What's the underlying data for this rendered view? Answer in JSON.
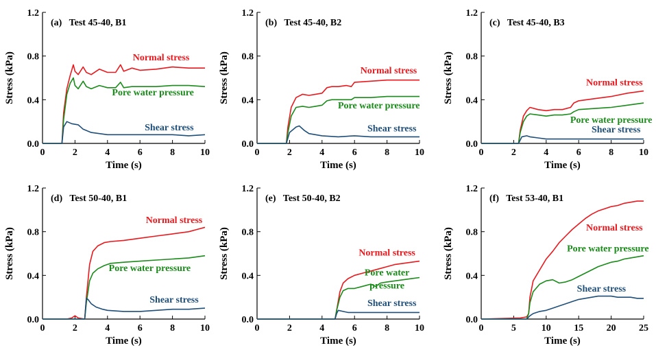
{
  "figure": {
    "y_axis_label": "Stress (kPa)",
    "x_axis_label": "Time (s)"
  },
  "colors": {
    "normal": "#e8191e",
    "pore": "#1a8a1a",
    "shear": "#1f4e79",
    "axis": "#000000"
  },
  "chart_data": [
    {
      "type": "line",
      "title": "(a)   Test 45-40, B1",
      "xlabel": "Time (s)",
      "ylabel": "Stress (kPa)",
      "xlim": [
        0,
        10
      ],
      "ylim": [
        0,
        1.2
      ],
      "xticks": [
        0,
        2,
        4,
        6,
        8,
        10
      ],
      "yticks": [
        0.0,
        0.4,
        0.8,
        1.2
      ],
      "series": [
        {
          "name": "Normal stress",
          "color_key": "normal",
          "x": [
            0,
            1.2,
            1.3,
            1.5,
            1.7,
            1.9,
            2.0,
            2.2,
            2.5,
            2.7,
            3.0,
            3.5,
            4.0,
            4.5,
            4.8,
            5.0,
            5.5,
            6.0,
            7.0,
            8.0,
            9.0,
            10.0
          ],
          "y": [
            0,
            0,
            0.28,
            0.5,
            0.62,
            0.72,
            0.66,
            0.63,
            0.7,
            0.65,
            0.63,
            0.68,
            0.65,
            0.65,
            0.72,
            0.66,
            0.69,
            0.67,
            0.68,
            0.7,
            0.69,
            0.69
          ]
        },
        {
          "name": "Pore water pressure",
          "color_key": "pore",
          "x": [
            0,
            1.2,
            1.3,
            1.5,
            1.7,
            1.9,
            2.0,
            2.2,
            2.5,
            2.7,
            3.0,
            3.5,
            4.0,
            4.5,
            4.8,
            5.0,
            5.5,
            6.0,
            7.0,
            8.0,
            9.0,
            10.0
          ],
          "y": [
            0,
            0,
            0.22,
            0.45,
            0.55,
            0.6,
            0.53,
            0.5,
            0.57,
            0.52,
            0.5,
            0.53,
            0.51,
            0.51,
            0.56,
            0.51,
            0.52,
            0.52,
            0.52,
            0.53,
            0.53,
            0.52
          ]
        },
        {
          "name": "Shear stress",
          "color_key": "shear",
          "x": [
            0,
            1.2,
            1.3,
            1.5,
            1.8,
            2.2,
            2.5,
            3.0,
            3.5,
            4.0,
            5.0,
            6.0,
            7.0,
            8.0,
            9.0,
            10.0
          ],
          "y": [
            0,
            0,
            0.15,
            0.2,
            0.18,
            0.17,
            0.13,
            0.1,
            0.09,
            0.08,
            0.08,
            0.08,
            0.08,
            0.08,
            0.07,
            0.08
          ]
        }
      ],
      "labels": [
        {
          "text": "Normal stress",
          "color_key": "normal",
          "x": 7.3,
          "y": 0.76
        },
        {
          "text": "Pore water pressure",
          "color_key": "pore",
          "x": 6.8,
          "y": 0.44
        },
        {
          "text": "Shear stress",
          "color_key": "shear",
          "x": 7.8,
          "y": 0.12
        }
      ]
    },
    {
      "type": "line",
      "title": "(b)   Test 45-40, B2",
      "xlabel": "Time (s)",
      "ylabel": "Stress (kPa)",
      "xlim": [
        0,
        10
      ],
      "ylim": [
        0,
        1.2
      ],
      "xticks": [
        0,
        2,
        4,
        6,
        8,
        10
      ],
      "yticks": [
        0.0,
        0.4,
        0.8,
        1.2
      ],
      "series": [
        {
          "name": "Normal stress",
          "color_key": "normal",
          "x": [
            0,
            1.8,
            1.9,
            2.1,
            2.4,
            2.8,
            3.2,
            3.6,
            4.0,
            4.3,
            4.6,
            5.0,
            5.5,
            5.8,
            6.0,
            7.0,
            8.0,
            9.0,
            10.0
          ],
          "y": [
            0,
            0,
            0.15,
            0.33,
            0.42,
            0.45,
            0.44,
            0.45,
            0.46,
            0.51,
            0.52,
            0.52,
            0.53,
            0.52,
            0.56,
            0.57,
            0.58,
            0.58,
            0.58
          ]
        },
        {
          "name": "Pore water pressure",
          "color_key": "pore",
          "x": [
            0,
            1.8,
            1.9,
            2.1,
            2.4,
            2.8,
            3.2,
            3.6,
            4.0,
            4.3,
            4.6,
            5.0,
            5.5,
            5.8,
            6.0,
            7.0,
            8.0,
            9.0,
            10.0
          ],
          "y": [
            0,
            0,
            0.1,
            0.25,
            0.33,
            0.34,
            0.33,
            0.34,
            0.35,
            0.39,
            0.4,
            0.4,
            0.4,
            0.4,
            0.42,
            0.42,
            0.43,
            0.43,
            0.43
          ]
        },
        {
          "name": "Shear stress",
          "color_key": "shear",
          "x": [
            0,
            1.8,
            2.0,
            2.4,
            2.6,
            2.9,
            3.2,
            3.6,
            4.0,
            5.0,
            6.0,
            7.0,
            8.0,
            9.0,
            10.0
          ],
          "y": [
            0,
            0,
            0.1,
            0.15,
            0.16,
            0.12,
            0.09,
            0.08,
            0.07,
            0.06,
            0.07,
            0.06,
            0.06,
            0.06,
            0.06
          ]
        }
      ],
      "labels": [
        {
          "text": "Normal stress",
          "color_key": "normal",
          "x": 8.1,
          "y": 0.64
        },
        {
          "text": "Pore water pressure",
          "color_key": "pore",
          "x": 7.5,
          "y": 0.32
        },
        {
          "text": "Shear stress",
          "color_key": "shear",
          "x": 8.3,
          "y": 0.11
        }
      ]
    },
    {
      "type": "line",
      "title": "(c)   Test 45-40, B3",
      "xlabel": "Time (s)",
      "ylabel": "Stress (kPa)",
      "xlim": [
        0,
        10
      ],
      "ylim": [
        0,
        1.2
      ],
      "xticks": [
        0,
        2,
        4,
        6,
        8,
        10
      ],
      "yticks": [
        0.0,
        0.4,
        0.8,
        1.2
      ],
      "series": [
        {
          "name": "Normal stress",
          "color_key": "normal",
          "x": [
            0,
            2.3,
            2.4,
            2.6,
            2.8,
            3.0,
            3.5,
            4.0,
            4.5,
            5.0,
            5.5,
            5.7,
            6.0,
            7.0,
            8.0,
            9.0,
            10.0
          ],
          "y": [
            0,
            0,
            0.12,
            0.25,
            0.3,
            0.33,
            0.31,
            0.3,
            0.31,
            0.31,
            0.33,
            0.37,
            0.39,
            0.41,
            0.43,
            0.46,
            0.48
          ]
        },
        {
          "name": "Pore water pressure",
          "color_key": "pore",
          "x": [
            0,
            2.3,
            2.4,
            2.6,
            2.8,
            3.0,
            3.5,
            4.0,
            4.5,
            5.0,
            5.5,
            5.7,
            6.0,
            7.0,
            8.0,
            9.0,
            10.0
          ],
          "y": [
            0,
            0,
            0.1,
            0.2,
            0.25,
            0.27,
            0.26,
            0.25,
            0.26,
            0.26,
            0.27,
            0.29,
            0.31,
            0.32,
            0.33,
            0.35,
            0.37
          ]
        },
        {
          "name": "Shear stress",
          "color_key": "shear",
          "x": [
            0,
            2.3,
            2.5,
            2.8,
            3.0,
            3.5,
            4.0,
            5.0,
            6.0,
            7.0,
            8.0,
            9.0,
            10.0
          ],
          "y": [
            0,
            0,
            0.06,
            0.07,
            0.06,
            0.05,
            0.04,
            0.04,
            0.04,
            0.04,
            0.04,
            0.04,
            0.04
          ]
        }
      ],
      "labels": [
        {
          "text": "Normal stress",
          "color_key": "normal",
          "x": 8.2,
          "y": 0.53
        },
        {
          "text": "Pore water pressure",
          "color_key": "pore",
          "x": 8.0,
          "y": 0.19
        },
        {
          "text": "Shear stress",
          "color_key": "shear",
          "x": 8.3,
          "y": 0.1
        }
      ]
    },
    {
      "type": "line",
      "title": "(d)   Test 50-40, B1",
      "xlabel": "Time (s)",
      "ylabel": "Stress (kPa)",
      "xlim": [
        0,
        10
      ],
      "ylim": [
        0,
        1.2
      ],
      "xticks": [
        0,
        2,
        4,
        6,
        8,
        10
      ],
      "yticks": [
        0.0,
        0.4,
        0.8,
        1.2
      ],
      "series": [
        {
          "name": "Normal stress",
          "color_key": "normal",
          "x": [
            0,
            1.5,
            1.8,
            2.0,
            2.2,
            2.6,
            2.7,
            2.9,
            3.1,
            3.4,
            3.8,
            4.2,
            5.0,
            6.0,
            7.0,
            8.0,
            9.0,
            9.5,
            10.0
          ],
          "y": [
            0,
            0,
            0.01,
            0.03,
            0.01,
            0.0,
            0.2,
            0.5,
            0.62,
            0.67,
            0.7,
            0.71,
            0.72,
            0.74,
            0.76,
            0.78,
            0.8,
            0.82,
            0.84
          ]
        },
        {
          "name": "Pore water pressure",
          "color_key": "pore",
          "x": [
            0,
            2.6,
            2.7,
            2.9,
            3.1,
            3.4,
            3.8,
            4.2,
            5.0,
            6.0,
            7.0,
            8.0,
            9.0,
            10.0
          ],
          "y": [
            0,
            0,
            0.15,
            0.35,
            0.42,
            0.46,
            0.49,
            0.51,
            0.52,
            0.53,
            0.54,
            0.55,
            0.56,
            0.58
          ]
        },
        {
          "name": "Shear stress",
          "color_key": "shear",
          "x": [
            0,
            2.6,
            2.7,
            2.8,
            3.0,
            3.3,
            3.7,
            4.0,
            5.0,
            6.0,
            7.0,
            8.0,
            9.0,
            10.0
          ],
          "y": [
            0,
            0,
            0.19,
            0.18,
            0.14,
            0.11,
            0.09,
            0.08,
            0.07,
            0.07,
            0.08,
            0.09,
            0.09,
            0.1
          ]
        }
      ],
      "labels": [
        {
          "text": "Normal stress",
          "color_key": "normal",
          "x": 8.1,
          "y": 0.88
        },
        {
          "text": "Pore water pressure",
          "color_key": "pore",
          "x": 6.6,
          "y": 0.44
        },
        {
          "text": "Shear stress",
          "color_key": "shear",
          "x": 8.1,
          "y": 0.15
        }
      ]
    },
    {
      "type": "line",
      "title": "(e)   Test 50-40, B2",
      "xlabel": "Time (s)",
      "ylabel": "Stress (kPa)",
      "xlim": [
        0,
        10
      ],
      "ylim": [
        0,
        1.2
      ],
      "xticks": [
        0,
        2,
        4,
        6,
        8,
        10
      ],
      "yticks": [
        0.0,
        0.4,
        0.8,
        1.2
      ],
      "series": [
        {
          "name": "Normal stress",
          "color_key": "normal",
          "x": [
            0,
            4.8,
            4.9,
            5.1,
            5.3,
            5.6,
            6.0,
            6.5,
            7.0,
            7.5,
            8.0,
            8.5,
            9.0,
            9.5,
            10.0
          ],
          "y": [
            0,
            0,
            0.08,
            0.25,
            0.33,
            0.37,
            0.4,
            0.42,
            0.44,
            0.46,
            0.48,
            0.5,
            0.51,
            0.52,
            0.53
          ]
        },
        {
          "name": "Pore water pressure",
          "color_key": "pore",
          "x": [
            0,
            4.8,
            4.9,
            5.1,
            5.3,
            5.6,
            6.0,
            6.5,
            7.0,
            7.3,
            7.6,
            8.0,
            8.5,
            9.0,
            9.5,
            10.0
          ],
          "y": [
            0,
            0,
            0.08,
            0.2,
            0.26,
            0.28,
            0.28,
            0.3,
            0.32,
            0.3,
            0.33,
            0.34,
            0.35,
            0.36,
            0.37,
            0.38
          ]
        },
        {
          "name": "Shear stress",
          "color_key": "shear",
          "x": [
            0,
            4.8,
            4.9,
            5.0,
            5.3,
            5.6,
            6.0,
            7.0,
            8.0,
            9.0,
            10.0
          ],
          "y": [
            0,
            0,
            0.05,
            0.08,
            0.07,
            0.06,
            0.06,
            0.06,
            0.06,
            0.06,
            0.06
          ]
        }
      ],
      "labels": [
        {
          "text": "Normal stress",
          "color_key": "normal",
          "x": 8.0,
          "y": 0.58
        },
        {
          "text": "Pore water",
          "color_key": "pore",
          "x": 8.0,
          "y": 0.4
        },
        {
          "text": "pressure",
          "color_key": "pore",
          "x": 8.0,
          "y": 0.28
        },
        {
          "text": "Shear stress",
          "color_key": "shear",
          "x": 8.3,
          "y": 0.12
        }
      ]
    },
    {
      "type": "line",
      "title": "(f)   Test 53-40, B1",
      "xlabel": "Time (s)",
      "ylabel": "Stress (kPa)",
      "xlim": [
        0,
        25
      ],
      "ylim": [
        0,
        1.2
      ],
      "xticks": [
        0,
        5,
        10,
        15,
        20,
        25
      ],
      "yticks": [
        0.0,
        0.4,
        0.8,
        1.2
      ],
      "series": [
        {
          "name": "Normal stress",
          "color_key": "normal",
          "x": [
            0,
            6.0,
            7.0,
            7.3,
            7.5,
            8.0,
            9.0,
            10.0,
            11.0,
            12.0,
            13.0,
            14.0,
            15.0,
            16.0,
            17.0,
            18.0,
            19.0,
            20.0,
            21.0,
            22.0,
            23.0,
            24.0,
            25.0
          ],
          "y": [
            0,
            0.01,
            0.02,
            0.05,
            0.2,
            0.35,
            0.45,
            0.55,
            0.62,
            0.7,
            0.76,
            0.82,
            0.87,
            0.92,
            0.96,
            0.99,
            1.01,
            1.03,
            1.04,
            1.06,
            1.07,
            1.08,
            1.08
          ]
        },
        {
          "name": "Pore water pressure",
          "color_key": "pore",
          "x": [
            0,
            7.0,
            7.3,
            7.5,
            8.0,
            9.0,
            10.0,
            11.0,
            12.0,
            13.0,
            14.0,
            15.0,
            16.0,
            17.0,
            18.0,
            19.0,
            20.0,
            21.0,
            22.0,
            23.0,
            24.0,
            25.0
          ],
          "y": [
            0,
            0,
            0.05,
            0.15,
            0.25,
            0.32,
            0.35,
            0.36,
            0.33,
            0.34,
            0.36,
            0.39,
            0.42,
            0.45,
            0.48,
            0.5,
            0.52,
            0.53,
            0.55,
            0.56,
            0.57,
            0.58
          ]
        },
        {
          "name": "Shear stress",
          "color_key": "shear",
          "x": [
            0,
            7.0,
            7.5,
            8.0,
            9.0,
            10.0,
            11.0,
            12.0,
            13.0,
            14.0,
            15.0,
            16.0,
            17.0,
            18.0,
            19.0,
            20.0,
            21.0,
            22.0,
            23.0,
            24.0,
            25.0
          ],
          "y": [
            0,
            0,
            0.03,
            0.05,
            0.07,
            0.08,
            0.1,
            0.12,
            0.14,
            0.16,
            0.18,
            0.19,
            0.2,
            0.21,
            0.21,
            0.21,
            0.2,
            0.2,
            0.2,
            0.19,
            0.19
          ]
        }
      ],
      "labels": [
        {
          "text": "Normal stress",
          "color_key": "normal",
          "x": 20.5,
          "y": 0.81
        },
        {
          "text": "Pore water pressure",
          "color_key": "pore",
          "x": 19.5,
          "y": 0.62
        },
        {
          "text": "Shear stress",
          "color_key": "shear",
          "x": 18.5,
          "y": 0.25
        }
      ]
    }
  ]
}
